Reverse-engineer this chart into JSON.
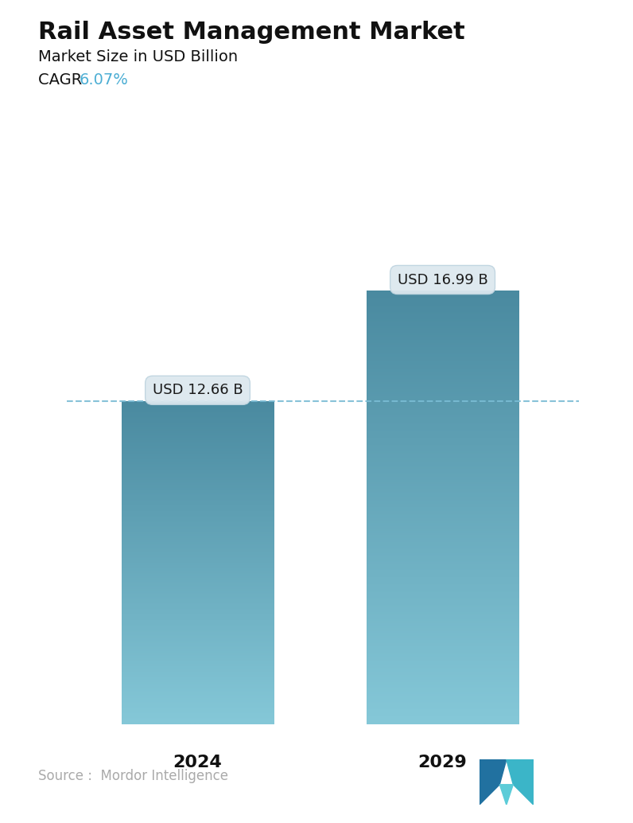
{
  "title": "Rail Asset Management Market",
  "subtitle": "Market Size in USD Billion",
  "cagr_label": "CAGR",
  "cagr_value": "6.07%",
  "cagr_color": "#4CAED4",
  "categories": [
    "2024",
    "2029"
  ],
  "values": [
    12.66,
    16.99
  ],
  "bar_labels": [
    "USD 12.66 B",
    "USD 16.99 B"
  ],
  "bar_top_color": "#4A8AA0",
  "bar_bottom_color": "#85C8D8",
  "dashed_line_color": "#7ABCD4",
  "dashed_line_value": 12.66,
  "source_text": "Source :  Mordor Intelligence",
  "source_color": "#aaaaaa",
  "background_color": "#ffffff",
  "title_fontsize": 22,
  "subtitle_fontsize": 14,
  "cagr_fontsize": 14,
  "bar_label_fontsize": 13,
  "xlabel_fontsize": 16,
  "source_fontsize": 12,
  "ylim": [
    0,
    20
  ],
  "bar_width": 0.28,
  "x_positions": [
    0.27,
    0.72
  ],
  "bubble_facecolor": "#DDE8EF",
  "bubble_edgecolor": "#C0D5E0",
  "logo_colors": [
    "#2171A0",
    "#3BB5C8",
    "#5CCCD8"
  ]
}
